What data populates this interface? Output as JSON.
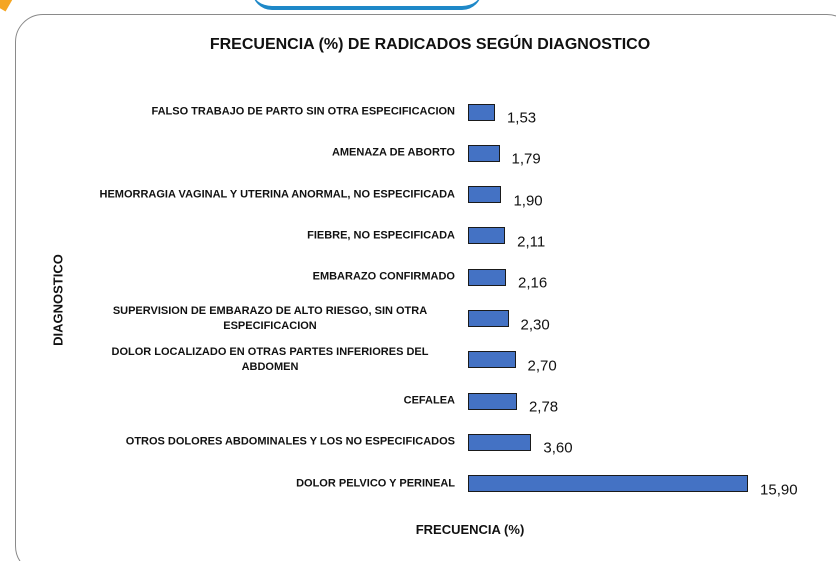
{
  "chart_data": {
    "type": "bar",
    "orientation": "horizontal",
    "title": "FRECUENCIA (%) DE RADICADOS SEGÚN DIAGNOSTICO",
    "x_label": "FRECUENCIA (%)",
    "y_label": "DIAGNOSTICO",
    "categories": [
      "FALSO TRABAJO DE PARTO SIN OTRA ESPECIFICACION",
      "AMENAZA DE ABORTO",
      "HEMORRAGIA VAGINAL Y UTERINA ANORMAL, NO ESPECIFICADA",
      "FIEBRE, NO ESPECIFICADA",
      "EMBARAZO CONFIRMADO",
      "SUPERVISION DE EMBARAZO DE ALTO RIESGO, SIN OTRA ESPECIFICACION",
      "DOLOR LOCALIZADO EN OTRAS PARTES INFERIORES DEL ABDOMEN",
      "CEFALEA",
      "OTROS DOLORES ABDOMINALES Y LOS NO ESPECIFICADOS",
      "DOLOR PELVICO Y PERINEAL"
    ],
    "values": [
      1.53,
      1.79,
      1.9,
      2.11,
      2.16,
      2.3,
      2.7,
      2.78,
      3.6,
      15.9
    ],
    "value_labels": [
      "1,53",
      "1,79",
      "1,90",
      "2,11",
      "2,16",
      "2,30",
      "2,70",
      "2,78",
      "3,60",
      "15,90"
    ],
    "color": "#4472c4",
    "xlim": [
      0,
      18
    ]
  }
}
